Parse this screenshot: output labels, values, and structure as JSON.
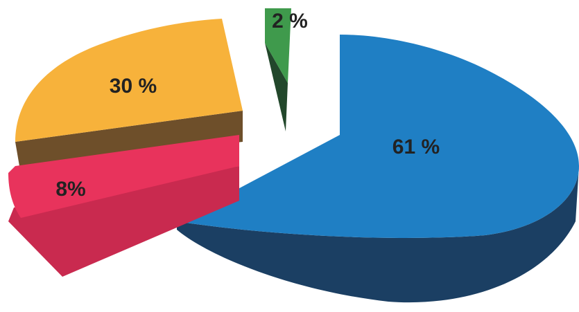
{
  "chart_data": {
    "type": "pie",
    "style": "3d-exploded",
    "slices": [
      {
        "label": "61 %",
        "value": 61,
        "color": "#1f7fc4",
        "side_color": "#1b3f63"
      },
      {
        "label": "30 %",
        "value": 30,
        "color": "#f7b23b",
        "side_color": "#6e4f2a"
      },
      {
        "label": "8%",
        "value": 8,
        "color": "#e8335c",
        "side_color": "#c92a4f"
      },
      {
        "label": "2 %",
        "value": 2,
        "color": "#3f9a4c",
        "side_color": "#22472b"
      }
    ]
  }
}
